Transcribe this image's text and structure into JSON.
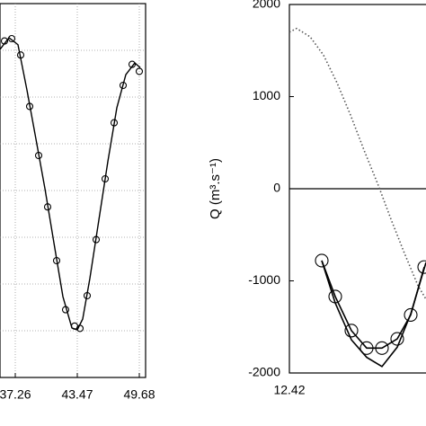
{
  "chart_data": [
    {
      "type": "line",
      "xlim": [
        35.73,
        50.31
      ],
      "ylim": [
        0,
        8
      ],
      "xticks": [
        37.26,
        43.47,
        49.68
      ],
      "grid": true,
      "grid_y": [
        1,
        2,
        3,
        4,
        5,
        6,
        7
      ],
      "series": [
        {
          "color": "#000000",
          "dash": "solid",
          "marker": "none",
          "x": [
            35.73,
            36.63,
            37.53,
            38.43,
            39.33,
            40.23,
            41.13,
            42.03,
            42.93,
            43.47,
            44.01,
            44.73,
            45.63,
            46.53,
            47.43,
            48.33,
            49.23,
            49.77
          ],
          "values": [
            7.02,
            7.27,
            7.12,
            6.15,
            5.1,
            4.04,
            2.88,
            1.73,
            1.06,
            1.02,
            1.25,
            2.12,
            3.37,
            4.62,
            5.77,
            6.48,
            6.73,
            6.63
          ]
        },
        {
          "color": "#000000",
          "dash": "none",
          "marker": "circle",
          "x": [
            36.18,
            36.9,
            37.8,
            38.7,
            39.6,
            40.5,
            41.4,
            42.3,
            43.2,
            43.74,
            44.46,
            45.36,
            46.26,
            47.16,
            48.06,
            48.96,
            49.68
          ],
          "values": [
            7.2,
            7.25,
            6.9,
            5.8,
            4.75,
            3.65,
            2.5,
            1.45,
            1.1,
            1.05,
            1.75,
            2.95,
            4.25,
            5.45,
            6.25,
            6.7,
            6.55
          ]
        }
      ]
    },
    {
      "type": "line",
      "xlim": [
        12.42,
        14.0
      ],
      "ylim": [
        -2000,
        2000
      ],
      "xticks": [
        12.42
      ],
      "yticks": [
        -2000,
        -1000,
        0,
        1000,
        2000
      ],
      "ylabel": "Q (m³.s⁻¹)",
      "hlines": [
        0
      ],
      "series": [
        {
          "color": "#555555",
          "dash": "dotted",
          "marker": "none",
          "x": [
            12.42,
            12.5,
            12.65,
            12.8,
            12.95,
            13.1,
            13.25,
            13.4,
            13.55,
            13.7,
            13.85,
            13.94
          ],
          "values": [
            1700,
            1740,
            1650,
            1450,
            1150,
            800,
            420,
            60,
            -330,
            -700,
            -1050,
            -1200
          ]
        },
        {
          "color": "#000000",
          "dash": "solid",
          "marker": "none",
          "x": [
            12.78,
            12.93,
            13.11,
            13.28,
            13.45,
            13.62,
            13.77,
            13.94
          ],
          "values": [
            -780,
            -1240,
            -1640,
            -1830,
            -1930,
            -1720,
            -1360,
            -800
          ]
        },
        {
          "color": "#000000",
          "dash": "solid",
          "marker": "circle",
          "x": [
            12.78,
            12.93,
            13.11,
            13.28,
            13.45,
            13.62,
            13.77,
            13.92
          ],
          "values": [
            -780,
            -1170,
            -1540,
            -1730,
            -1730,
            -1630,
            -1370,
            -850
          ]
        }
      ]
    }
  ]
}
